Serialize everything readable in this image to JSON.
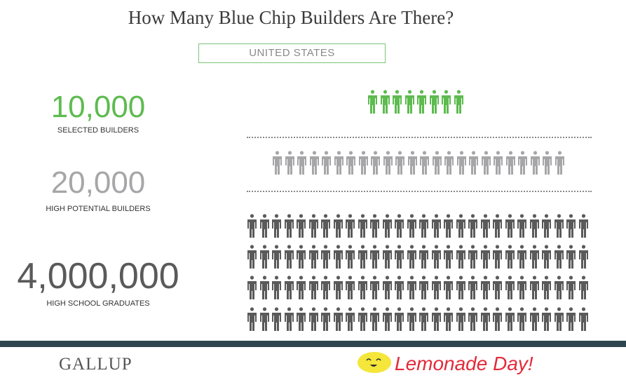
{
  "title": "How Many Blue Chip Builders Are There?",
  "country": "UNITED STATES",
  "stats": [
    {
      "value": "10,000",
      "label": "SELECTED BUILDERS",
      "color": "#5dbb4f",
      "icons": 8,
      "rows": 1
    },
    {
      "value": "20,000",
      "label": "HIGH POTENTIAL BUILDERS",
      "color": "#a6a6a8",
      "icons": 24,
      "rows": 1
    },
    {
      "value": "4,000,000",
      "label": "HIGH SCHOOL GRADUATES",
      "color": "#5a5a5a",
      "icons": 28,
      "rows": 4
    }
  ],
  "footer": {
    "left_logo": "GALLUP",
    "right_logo": "Lemonade Day!",
    "bar_color": "#2e4650"
  }
}
